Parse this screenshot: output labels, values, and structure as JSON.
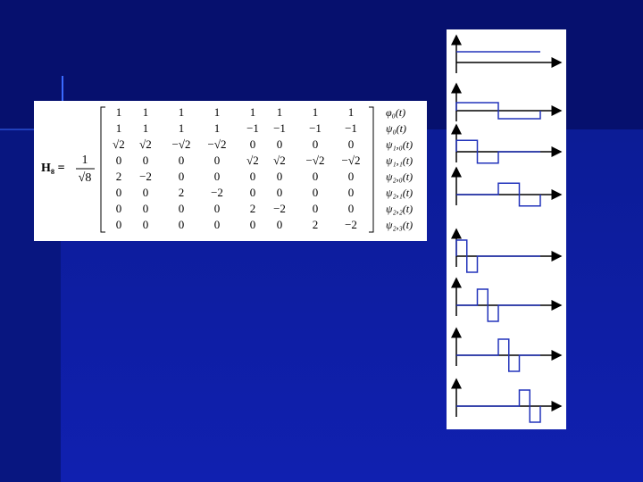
{
  "matrix": {
    "lhs": "H₈ =",
    "numerator": "1",
    "denominator": "√8",
    "rows": [
      [
        "1",
        "1",
        "1",
        "1",
        "1",
        "1",
        "1",
        "1"
      ],
      [
        "1",
        "1",
        "1",
        "1",
        "−1",
        "−1",
        "−1",
        "−1"
      ],
      [
        "√2",
        "√2",
        "−√2",
        "−√2",
        "0",
        "0",
        "0",
        "0"
      ],
      [
        "0",
        "0",
        "0",
        "0",
        "√2",
        "√2",
        "−√2",
        "−√2"
      ],
      [
        "2",
        "−2",
        "0",
        "0",
        "0",
        "0",
        "0",
        "0"
      ],
      [
        "0",
        "0",
        "2",
        "−2",
        "0",
        "0",
        "0",
        "0"
      ],
      [
        "0",
        "0",
        "0",
        "0",
        "2",
        "−2",
        "0",
        "0"
      ],
      [
        "0",
        "0",
        "0",
        "0",
        "0",
        "0",
        "2",
        "−2"
      ]
    ],
    "row_labels": [
      "φ₀(t)",
      "ψ₀(t)",
      "ψ₁,₀(t)",
      "ψ₁,₁(t)",
      "ψ₂,₀(t)",
      "ψ₂,₁(t)",
      "ψ₂,₂(t)",
      "ψ₂,₃(t)"
    ]
  }
}
